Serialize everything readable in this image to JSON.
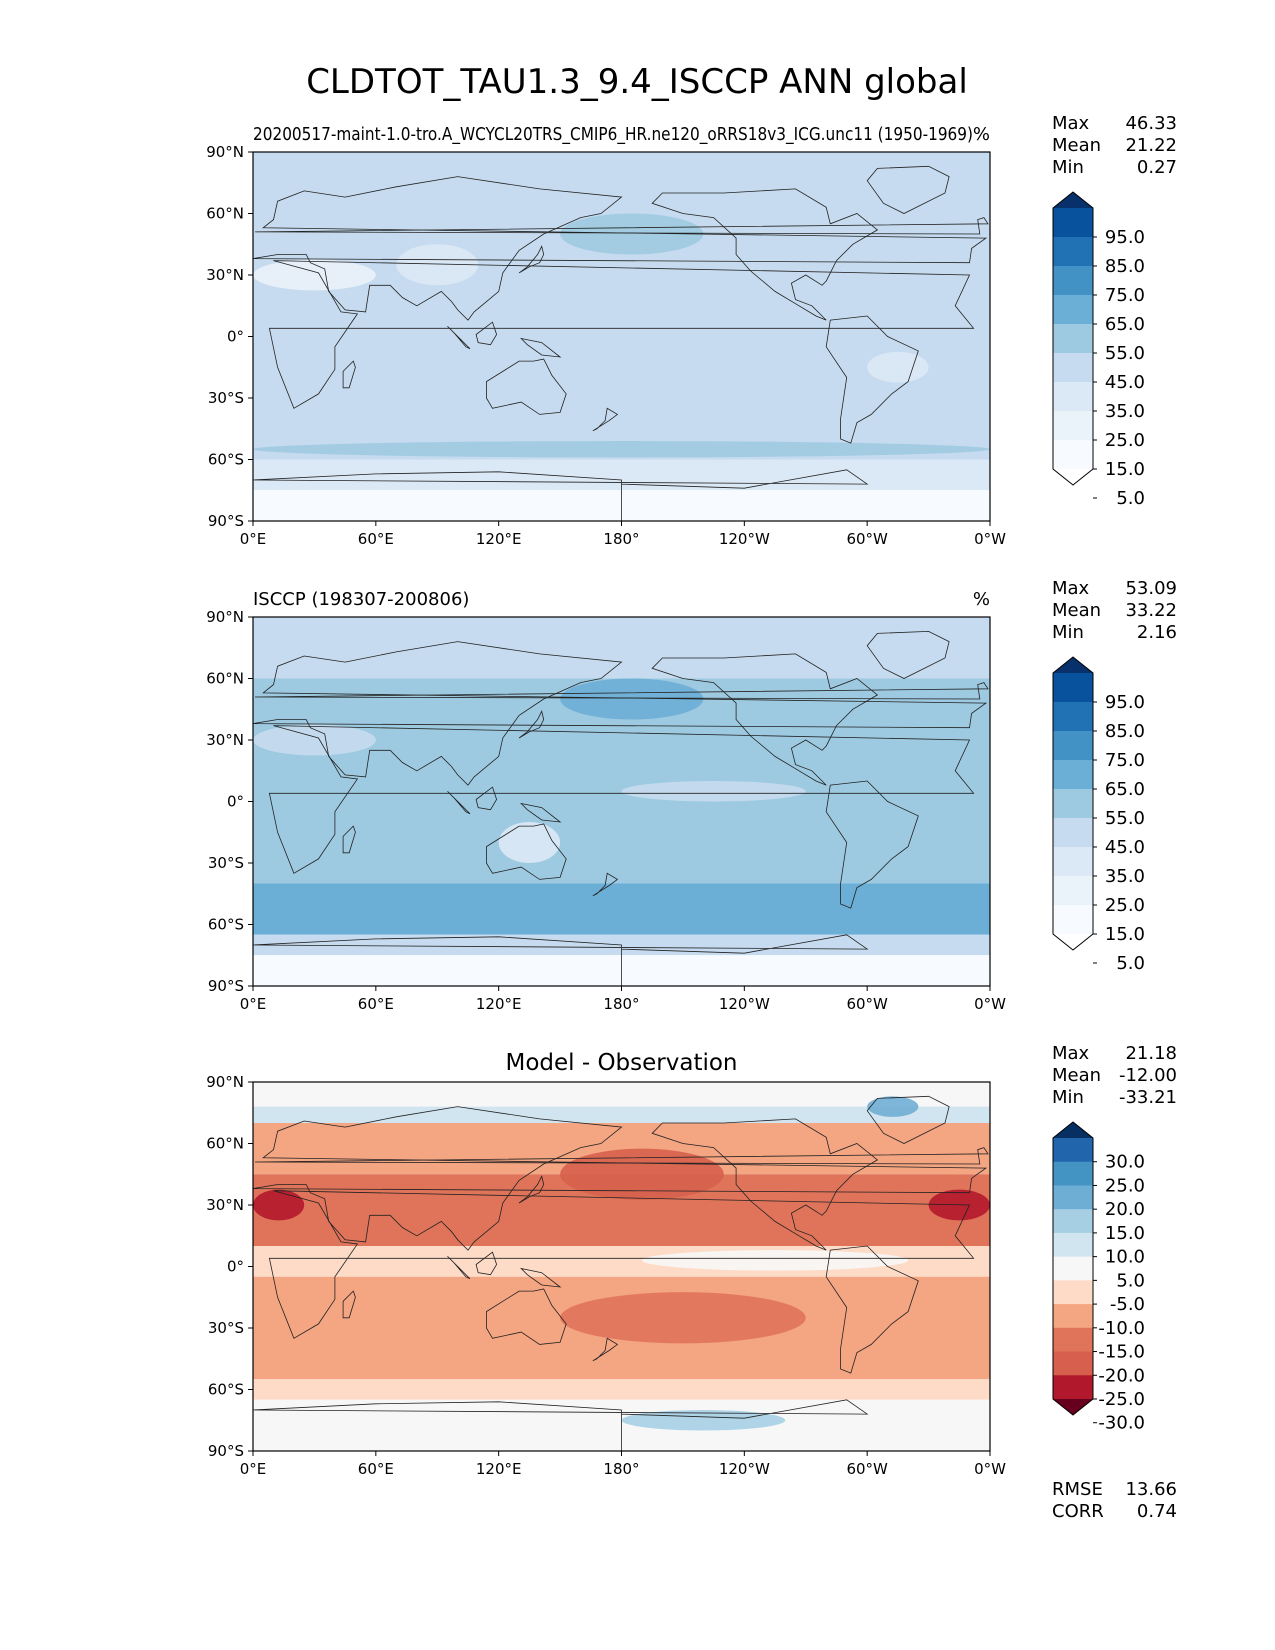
{
  "figure": {
    "title": "CLDTOT_TAU1.3_9.4_ISCCP ANN global"
  },
  "chart_data": [
    {
      "type": "heatmap",
      "panel": "test",
      "title_left": "20200517-maint-1.0-tro.A_WCYCL20TRS_CMIP6_HR.ne120_oRRS18v3_ICG.unc11 (1950-1969)",
      "title_right": "%",
      "title_center": "",
      "stats": [
        {
          "label": "Max",
          "value": "46.33"
        },
        {
          "label": "Mean",
          "value": "21.22"
        },
        {
          "label": "Min",
          "value": "0.27"
        }
      ],
      "xlim": [
        0,
        360
      ],
      "ylim": [
        -90,
        90
      ],
      "xticks": [
        "0°E",
        "60°E",
        "120°E",
        "180°",
        "120°W",
        "60°W",
        "0°W"
      ],
      "yticks": [
        "90°N",
        "60°N",
        "30°N",
        "0°",
        "30°S",
        "60°S",
        "90°S"
      ],
      "colorbar": {
        "labels": [
          "95.0",
          "85.0",
          "75.0",
          "65.0",
          "55.0",
          "45.0",
          "35.0",
          "25.0",
          "15.0",
          "5.0"
        ],
        "colors": [
          "#08306b",
          "#08519c",
          "#2171b5",
          "#4292c6",
          "#6baed6",
          "#9ecae1",
          "#c6dbef",
          "#dbe9f6",
          "#eaf2fa",
          "#f7fbff",
          "#ffffff"
        ],
        "extend": "both"
      },
      "zonal_levels": [
        {
          "lat": [
            60,
            90
          ],
          "color": "#c6dbef"
        },
        {
          "lat": [
            -60,
            60
          ],
          "color": "#c6dbef"
        },
        {
          "lat": [
            -75,
            -60
          ],
          "color": "#dbe9f6"
        },
        {
          "lat": [
            -90,
            -75
          ],
          "color": "#f7fbff"
        }
      ],
      "patches": [
        {
          "lon": 0,
          "lat": 30,
          "w": 60,
          "h": 15,
          "color": "#eaf2fa"
        },
        {
          "lon": 70,
          "lat": 35,
          "w": 40,
          "h": 20,
          "color": "#dbe9f6"
        },
        {
          "lon": 150,
          "lat": 50,
          "w": 70,
          "h": 20,
          "color": "#9ecae1"
        },
        {
          "lon": 300,
          "lat": -15,
          "w": 30,
          "h": 15,
          "color": "#dbe9f6"
        },
        {
          "lon": 0,
          "lat": -55,
          "w": 360,
          "h": 8,
          "color": "#9ecae1"
        }
      ]
    },
    {
      "type": "heatmap",
      "panel": "reference",
      "title_left": "ISCCP (198307-200806)",
      "title_right": "%",
      "title_center": "",
      "stats": [
        {
          "label": "Max",
          "value": "53.09"
        },
        {
          "label": "Mean",
          "value": "33.22"
        },
        {
          "label": "Min",
          "value": "2.16"
        }
      ],
      "xlim": [
        0,
        360
      ],
      "ylim": [
        -90,
        90
      ],
      "xticks": [
        "0°E",
        "60°E",
        "120°E",
        "180°",
        "120°W",
        "60°W",
        "0°W"
      ],
      "yticks": [
        "90°N",
        "60°N",
        "30°N",
        "0°",
        "30°S",
        "60°S",
        "90°S"
      ],
      "colorbar": {
        "labels": [
          "95.0",
          "85.0",
          "75.0",
          "65.0",
          "55.0",
          "45.0",
          "35.0",
          "25.0",
          "15.0",
          "5.0"
        ],
        "colors": [
          "#08306b",
          "#08519c",
          "#2171b5",
          "#4292c6",
          "#6baed6",
          "#9ecae1",
          "#c6dbef",
          "#dbe9f6",
          "#eaf2fa",
          "#f7fbff",
          "#ffffff"
        ],
        "extend": "both"
      },
      "zonal_levels": [
        {
          "lat": [
            60,
            90
          ],
          "color": "#c6dbef"
        },
        {
          "lat": [
            -40,
            60
          ],
          "color": "#9ecae1"
        },
        {
          "lat": [
            -65,
            -40
          ],
          "color": "#6baed6"
        },
        {
          "lat": [
            -75,
            -65
          ],
          "color": "#c6dbef"
        },
        {
          "lat": [
            -90,
            -75
          ],
          "color": "#f7fbff"
        }
      ],
      "patches": [
        {
          "lon": 0,
          "lat": 30,
          "w": 60,
          "h": 15,
          "color": "#c6dbef"
        },
        {
          "lon": 150,
          "lat": 50,
          "w": 70,
          "h": 20,
          "color": "#6baed6"
        },
        {
          "lon": 180,
          "lat": 5,
          "w": 90,
          "h": 10,
          "color": "#c6dbef"
        },
        {
          "lon": 120,
          "lat": -20,
          "w": 30,
          "h": 20,
          "color": "#dbe9f6"
        }
      ]
    },
    {
      "type": "heatmap",
      "panel": "difference",
      "title_left": "",
      "title_right": "",
      "title_center": "Model - Observation",
      "stats": [
        {
          "label": "Max",
          "value": "21.18"
        },
        {
          "label": "Mean",
          "value": "-12.00"
        },
        {
          "label": "Min",
          "value": "-33.21"
        }
      ],
      "bottom_stats": [
        {
          "label": "RMSE",
          "value": "13.66"
        },
        {
          "label": "CORR",
          "value": "0.74"
        }
      ],
      "xlim": [
        0,
        360
      ],
      "ylim": [
        -90,
        90
      ],
      "xticks": [
        "0°E",
        "60°E",
        "120°E",
        "180°",
        "120°W",
        "60°W",
        "0°W"
      ],
      "yticks": [
        "90°N",
        "60°N",
        "30°N",
        "0°",
        "30°S",
        "60°S",
        "90°S"
      ],
      "colorbar": {
        "labels": [
          "30.0",
          "25.0",
          "20.0",
          "15.0",
          "10.0",
          "5.0",
          "-5.0",
          "-10.0",
          "-15.0",
          "-20.0",
          "-25.0",
          "-30.0"
        ],
        "colors": [
          "#053061",
          "#2166ac",
          "#4393c3",
          "#6faed4",
          "#a6cfe4",
          "#d1e5f0",
          "#f7f7f7",
          "#fddbc7",
          "#f4a582",
          "#e0745a",
          "#d6604d",
          "#b2182b",
          "#67001f"
        ],
        "extend": "both"
      },
      "zonal_levels": [
        {
          "lat": [
            78,
            90
          ],
          "color": "#f7f7f7"
        },
        {
          "lat": [
            70,
            78
          ],
          "color": "#d1e5f0"
        },
        {
          "lat": [
            45,
            70
          ],
          "color": "#f4a582"
        },
        {
          "lat": [
            10,
            45
          ],
          "color": "#e0745a"
        },
        {
          "lat": [
            -5,
            10
          ],
          "color": "#fddbc7"
        },
        {
          "lat": [
            -55,
            -5
          ],
          "color": "#f4a582"
        },
        {
          "lat": [
            -65,
            -55
          ],
          "color": "#fddbc7"
        },
        {
          "lat": [
            -90,
            -65
          ],
          "color": "#f7f7f7"
        }
      ],
      "patches": [
        {
          "lon": 190,
          "lat": 3,
          "w": 130,
          "h": 10,
          "color": "#f7f7f7"
        },
        {
          "lon": 150,
          "lat": 45,
          "w": 80,
          "h": 25,
          "color": "#d6604d"
        },
        {
          "lon": 0,
          "lat": 30,
          "w": 25,
          "h": 15,
          "color": "#b2182b"
        },
        {
          "lon": 330,
          "lat": 30,
          "w": 30,
          "h": 15,
          "color": "#b2182b"
        },
        {
          "lon": 150,
          "lat": -25,
          "w": 120,
          "h": 25,
          "color": "#e0745a"
        },
        {
          "lon": 300,
          "lat": 78,
          "w": 25,
          "h": 10,
          "color": "#6faed4"
        },
        {
          "lon": 180,
          "lat": -75,
          "w": 80,
          "h": 10,
          "color": "#a6cfe4"
        }
      ]
    }
  ],
  "map": {
    "continents": [
      {
        "name": "africa",
        "pts": [
          [
            -17,
            15
          ],
          [
            -10,
            30
          ],
          [
            10,
            37
          ],
          [
            32,
            31
          ],
          [
            43,
            12
          ],
          [
            51,
            11
          ],
          [
            40,
            -5
          ],
          [
            40,
            -16
          ],
          [
            32,
            -28
          ],
          [
            20,
            -35
          ],
          [
            12,
            -15
          ],
          [
            8,
            4
          ],
          [
            -8,
            4
          ]
        ]
      },
      {
        "name": "eurasia",
        "pts": [
          [
            -10,
            36
          ],
          [
            -9,
            43
          ],
          [
            -2,
            48
          ],
          [
            5,
            53
          ],
          [
            10,
            57
          ],
          [
            12,
            66
          ],
          [
            25,
            71
          ],
          [
            45,
            68
          ],
          [
            70,
            73
          ],
          [
            100,
            78
          ],
          [
            140,
            72
          ],
          [
            180,
            68
          ],
          [
            170,
            60
          ],
          [
            160,
            58
          ],
          [
            142,
            50
          ],
          [
            130,
            42
          ],
          [
            122,
            31
          ],
          [
            120,
            22
          ],
          [
            108,
            12
          ],
          [
            105,
            8
          ],
          [
            100,
            13
          ],
          [
            97,
            17
          ],
          [
            92,
            22
          ],
          [
            80,
            15
          ],
          [
            73,
            19
          ],
          [
            67,
            25
          ],
          [
            57,
            25
          ],
          [
            55,
            12
          ],
          [
            45,
            13
          ],
          [
            37,
            22
          ],
          [
            35,
            33
          ],
          [
            28,
            36
          ],
          [
            26,
            40
          ],
          [
            12,
            40
          ],
          [
            0,
            38
          ]
        ]
      },
      {
        "name": "north-america",
        "pts": [
          [
            -165,
            65
          ],
          [
            -160,
            70
          ],
          [
            -130,
            70
          ],
          [
            -95,
            72
          ],
          [
            -80,
            63
          ],
          [
            -78,
            55
          ],
          [
            -65,
            60
          ],
          [
            -55,
            52
          ],
          [
            -67,
            45
          ],
          [
            -75,
            37
          ],
          [
            -80,
            27
          ],
          [
            -82,
            25
          ],
          [
            -90,
            30
          ],
          [
            -97,
            26
          ],
          [
            -95,
            18
          ],
          [
            -87,
            15
          ],
          [
            -80,
            8
          ],
          [
            -85,
            10
          ],
          [
            -95,
            16
          ],
          [
            -105,
            22
          ],
          [
            -117,
            32
          ],
          [
            -124,
            40
          ],
          [
            -124,
            48
          ],
          [
            -135,
            58
          ],
          [
            -150,
            60
          ]
        ]
      },
      {
        "name": "south-america",
        "pts": [
          [
            -78,
            8
          ],
          [
            -60,
            10
          ],
          [
            -50,
            0
          ],
          [
            -35,
            -7
          ],
          [
            -40,
            -22
          ],
          [
            -48,
            -28
          ],
          [
            -58,
            -38
          ],
          [
            -65,
            -42
          ],
          [
            -68,
            -52
          ],
          [
            -73,
            -50
          ],
          [
            -73,
            -40
          ],
          [
            -70,
            -20
          ],
          [
            -80,
            -5
          ]
        ]
      },
      {
        "name": "australia",
        "pts": [
          [
            114,
            -22
          ],
          [
            122,
            -17
          ],
          [
            130,
            -12
          ],
          [
            137,
            -12
          ],
          [
            142,
            -11
          ],
          [
            146,
            -19
          ],
          [
            153,
            -28
          ],
          [
            150,
            -37
          ],
          [
            140,
            -38
          ],
          [
            131,
            -32
          ],
          [
            117,
            -35
          ],
          [
            114,
            -30
          ]
        ]
      },
      {
        "name": "greenland",
        "pts": [
          [
            -55,
            82
          ],
          [
            -30,
            83
          ],
          [
            -20,
            78
          ],
          [
            -22,
            70
          ],
          [
            -42,
            60
          ],
          [
            -52,
            65
          ],
          [
            -60,
            76
          ]
        ]
      },
      {
        "name": "antarctica",
        "pts": [
          [
            -180,
            -72
          ],
          [
            -120,
            -74
          ],
          [
            -70,
            -65
          ],
          [
            -60,
            -72
          ],
          [
            0,
            -70
          ],
          [
            60,
            -67
          ],
          [
            120,
            -66
          ],
          [
            180,
            -70
          ],
          [
            180,
            -90
          ],
          [
            -180,
            -90
          ]
        ]
      },
      {
        "name": "madagascar",
        "pts": [
          [
            44,
            -25
          ],
          [
            47,
            -25
          ],
          [
            50,
            -15
          ],
          [
            49,
            -12
          ],
          [
            44,
            -17
          ]
        ]
      },
      {
        "name": "uk",
        "pts": [
          [
            -5,
            50
          ],
          [
            1,
            51
          ],
          [
            -1,
            55
          ],
          [
            -3,
            58
          ],
          [
            -6,
            57
          ]
        ]
      },
      {
        "name": "japan",
        "pts": [
          [
            130,
            31
          ],
          [
            135,
            34
          ],
          [
            140,
            36
          ],
          [
            142,
            40
          ],
          [
            141,
            44
          ],
          [
            139,
            40
          ],
          [
            134,
            34
          ]
        ]
      },
      {
        "name": "borneo",
        "pts": [
          [
            109,
            1
          ],
          [
            117,
            7
          ],
          [
            119,
            1
          ],
          [
            116,
            -4
          ],
          [
            110,
            -3
          ]
        ]
      },
      {
        "name": "new-guinea",
        "pts": [
          [
            131,
            -1
          ],
          [
            141,
            -3
          ],
          [
            150,
            -10
          ],
          [
            141,
            -9
          ],
          [
            134,
            -4
          ]
        ]
      },
      {
        "name": "new-zealand",
        "pts": [
          [
            166,
            -46
          ],
          [
            174,
            -41
          ],
          [
            178,
            -38
          ],
          [
            173,
            -35
          ],
          [
            172,
            -41
          ],
          [
            168,
            -45
          ]
        ]
      },
      {
        "name": "sumatra",
        "pts": [
          [
            95,
            5
          ],
          [
            106,
            -6
          ],
          [
            104,
            -5
          ],
          [
            98,
            2
          ]
        ]
      }
    ]
  }
}
